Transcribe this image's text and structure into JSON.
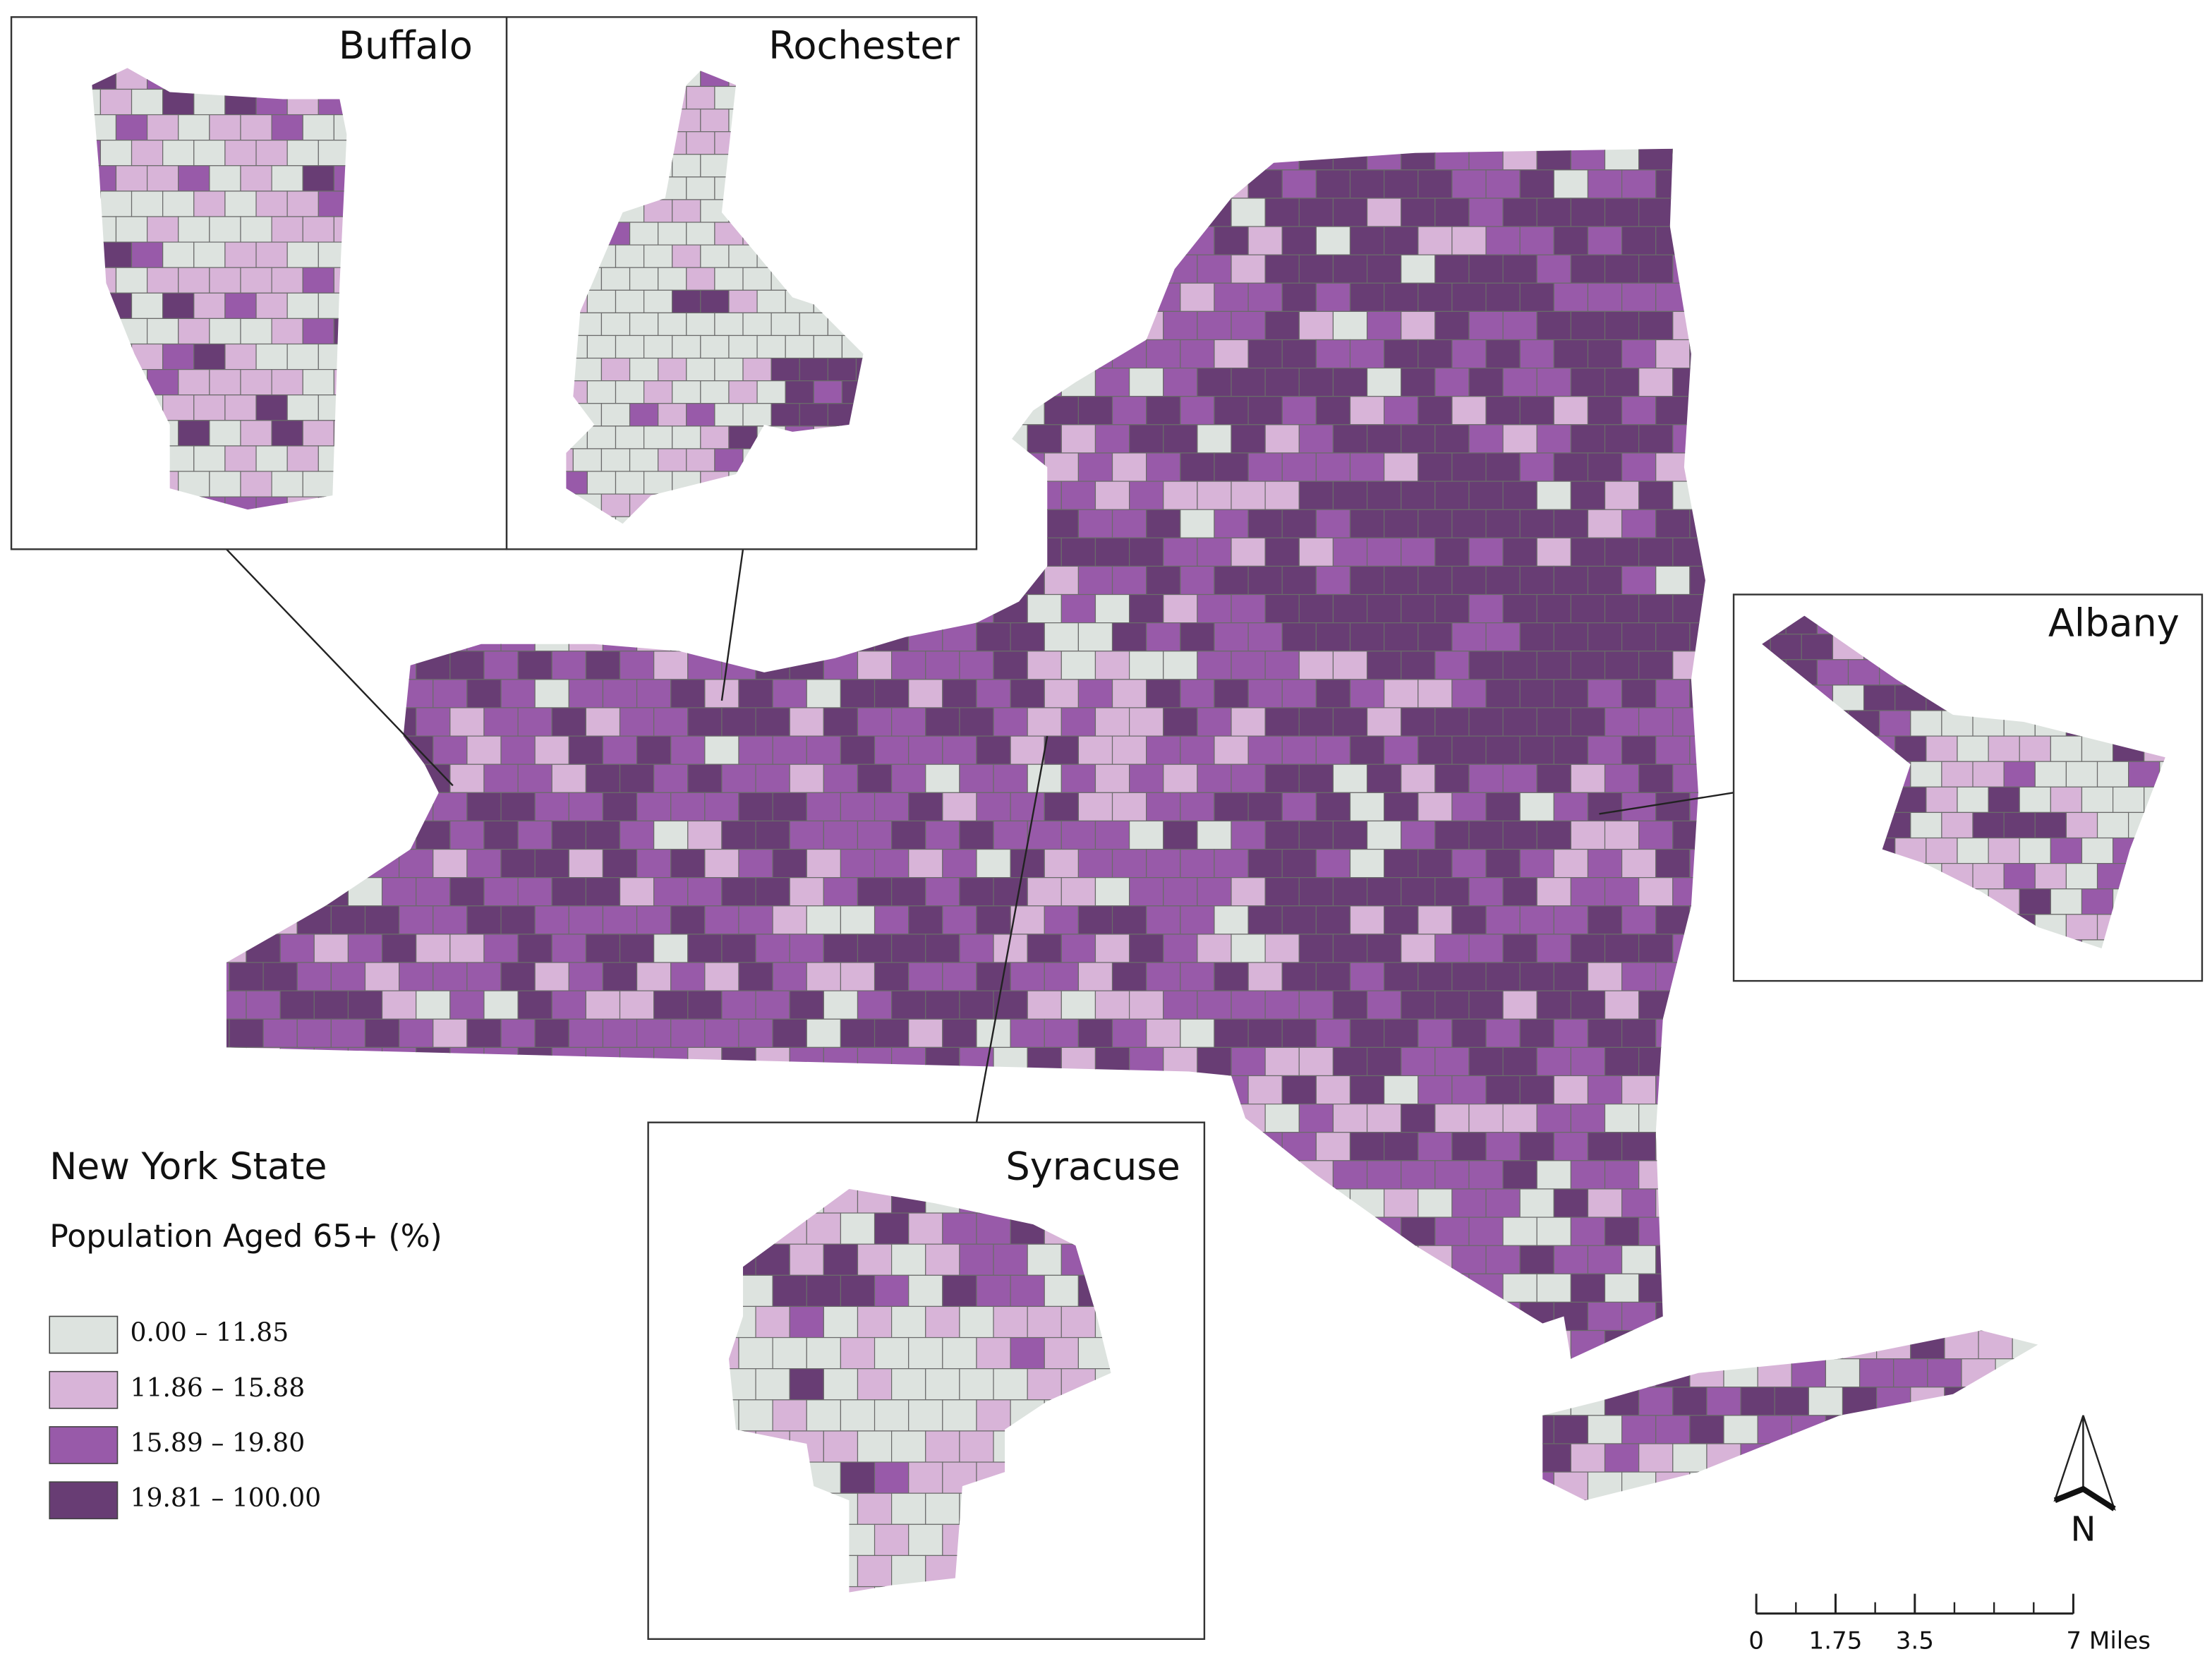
{
  "title": "New York State",
  "subtitle": "Population Aged 65+ (%)",
  "legend": [
    {
      "label": "0.00  – 11.85",
      "color": "#dde3df"
    },
    {
      "label": "11.86 – 15.88",
      "color": "#d8b4d8"
    },
    {
      "label": "15.89 – 19.80",
      "color": "#985aa9"
    },
    {
      "label": "19.81 – 100.00",
      "color": "#683d74"
    }
  ],
  "insets": [
    {
      "label": "Buffalo"
    },
    {
      "label": "Rochester"
    },
    {
      "label": "Syracuse"
    },
    {
      "label": "Albany"
    }
  ],
  "scale_bar": {
    "ticks": [
      {
        "value": 0,
        "label": "0"
      },
      {
        "value": 1.75,
        "label": "1.75"
      },
      {
        "value": 3.5,
        "label": "3.5"
      },
      {
        "value": 7,
        "label": "7 Miles"
      }
    ]
  },
  "north_label": "N"
}
